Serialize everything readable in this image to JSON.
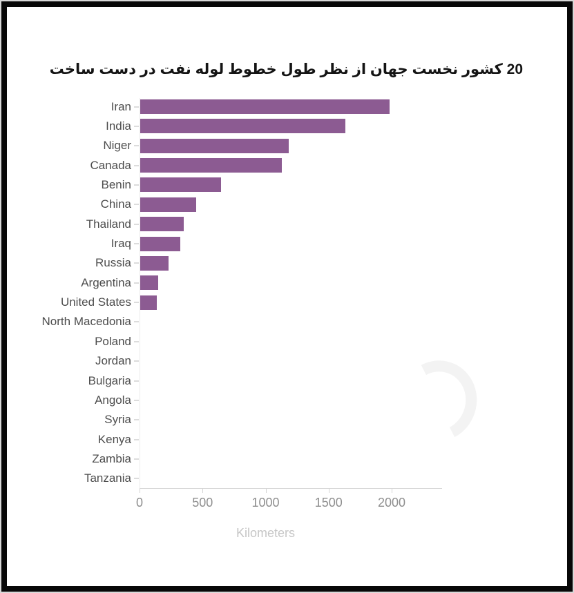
{
  "title": "20 کشور نخست جهان از نظر طول خطوط لوله نفت در دست ساخت",
  "chart_data": {
    "type": "bar",
    "orientation": "horizontal",
    "title": "20 کشور نخست جهان از نظر طول خطوط لوله نفت در دست ساخت",
    "categories": [
      "Iran",
      "India",
      "Niger",
      "Canada",
      "Benin",
      "China",
      "Thailand",
      "Iraq",
      "Russia",
      "Argentina",
      "United States",
      "North Macedonia",
      "Poland",
      "Jordan",
      "Bulgaria",
      "Angola",
      "Syria",
      "Kenya",
      "Zambia",
      "Tanzania"
    ],
    "values": [
      1980,
      1630,
      1180,
      1125,
      640,
      445,
      345,
      320,
      225,
      145,
      130,
      0,
      0,
      0,
      0,
      0,
      0,
      0,
      0,
      0
    ],
    "xlabel": "Kilometers",
    "xlim": [
      0,
      2000
    ],
    "xticks": [
      0,
      500,
      1000,
      1500,
      2000
    ],
    "grid": false,
    "legend": false,
    "bar_color": "#8c5b92",
    "label_color": "#4d4d4d",
    "tick_label_color": "#8e8e8e",
    "axis_label_color": "#c6c6c6"
  }
}
